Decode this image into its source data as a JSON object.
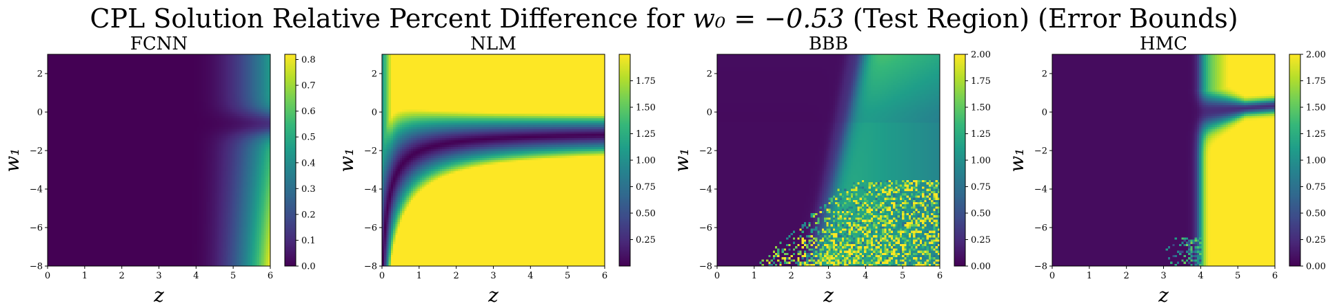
{
  "figure": {
    "title_pre": "CPL Solution Relative Percent Difference for ",
    "title_math": "w₀ = −0.53",
    "title_post": " (Test Region) (Error Bounds)"
  },
  "colormap": {
    "name": "viridis",
    "stops": [
      "#440154",
      "#482878",
      "#3e4989",
      "#31688e",
      "#26828e",
      "#1f9e89",
      "#35b779",
      "#6ece58",
      "#b5de2b",
      "#fde725"
    ]
  },
  "chart_data": [
    {
      "type": "heatmap",
      "title": "FCNN",
      "xlabel": "z",
      "ylabel": "w₁",
      "xlim": [
        0,
        6
      ],
      "ylim": [
        -8,
        3
      ],
      "xticks": [
        "0",
        "1",
        "2",
        "3",
        "4",
        "5",
        "6"
      ],
      "yticks": [
        "−8",
        "−6",
        "−4",
        "−2",
        "0",
        "2"
      ],
      "colorbar": {
        "min": 0,
        "max": 0.82,
        "ticks": [
          "0.0",
          "0.1",
          "0.2",
          "0.3",
          "0.4",
          "0.5",
          "0.6",
          "0.7",
          "0.8"
        ]
      },
      "description_of_field": "near zero for z below 4, rising toward z=6; highest at low w1 near z=6 (about 0.82), dark valley near w1 = -0.5",
      "grid": false
    },
    {
      "type": "heatmap",
      "title": "NLM",
      "xlabel": "z",
      "ylabel": "w₁",
      "xlim": [
        0,
        6
      ],
      "ylim": [
        -8,
        3
      ],
      "xticks": [
        "0",
        "1",
        "2",
        "3",
        "4",
        "5",
        "6"
      ],
      "yticks": [
        "−8",
        "−6",
        "−4",
        "−2",
        "0",
        "2"
      ],
      "colorbar": {
        "min": 0.0,
        "max": 2.0,
        "ticks": [
          "0.25",
          "0.50",
          "0.75",
          "1.00",
          "1.25",
          "1.50",
          "1.75"
        ]
      },
      "description_of_field": "saturated (about 2) over most of the region; dark curved valley approaching w1 = -1 as z grows",
      "grid": false
    },
    {
      "type": "heatmap",
      "title": "BBB",
      "xlabel": "z",
      "ylabel": "w₁",
      "xlim": [
        0,
        6
      ],
      "ylim": [
        -8,
        3
      ],
      "xticks": [
        "0",
        "1",
        "2",
        "3",
        "4",
        "5",
        "6"
      ],
      "yticks": [
        "−8",
        "−6",
        "−4",
        "−2",
        "0",
        "2"
      ],
      "colorbar": {
        "min": 0.0,
        "max": 2.0,
        "ticks": [
          "0.00",
          "0.25",
          "0.50",
          "0.75",
          "1.00",
          "1.25",
          "1.50",
          "1.75",
          "2.00"
        ]
      },
      "description_of_field": "low for z below 3.5; teal-green (about 1.4) at high w1 for z above 4; noisy yellow speckle at low w1 and high z",
      "grid": false
    },
    {
      "type": "heatmap",
      "title": "HMC",
      "xlabel": "z",
      "ylabel": "w₁",
      "xlim": [
        0,
        6
      ],
      "ylim": [
        -8,
        3
      ],
      "xticks": [
        "0",
        "1",
        "2",
        "3",
        "4",
        "5",
        "6"
      ],
      "yticks": [
        "−8",
        "−6",
        "−4",
        "−2",
        "0",
        "2"
      ],
      "colorbar": {
        "min": 0.0,
        "max": 2.0,
        "ticks": [
          "0.00",
          "0.25",
          "0.50",
          "0.75",
          "1.00",
          "1.25",
          "1.50",
          "1.75",
          "2.00"
        ]
      },
      "description_of_field": "low for z below 4; saturated yellow for z above 4 except a dark line near w1 = 0.2; small noisy patch near z = 3.5 at low w1",
      "grid": false
    }
  ]
}
